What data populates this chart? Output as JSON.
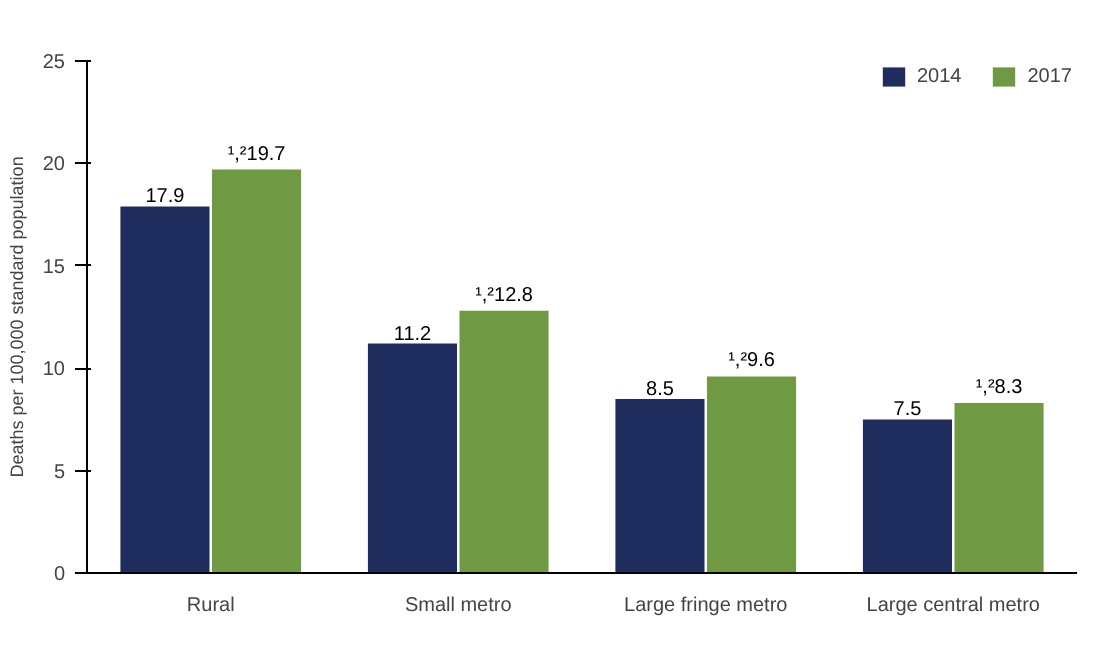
{
  "chart_data": {
    "type": "bar",
    "ylabel": "Deaths per 100,000 standard population",
    "categories": [
      "Rural",
      "Small metro",
      "Large fringe metro",
      "Large central metro"
    ],
    "series": [
      {
        "name": "2014",
        "color": "#1f2d5e",
        "values": [
          17.9,
          11.2,
          8.5,
          7.5
        ],
        "value_labels": [
          "17.9",
          "11.2",
          "8.5",
          "7.5"
        ]
      },
      {
        "name": "2017",
        "color": "#6f9a43",
        "values": [
          19.7,
          12.8,
          9.6,
          8.3
        ],
        "value_labels": [
          "¹,²19.7",
          "¹,²12.8",
          "¹,²9.6",
          "¹,²8.3"
        ]
      }
    ],
    "ylim": [
      0,
      25
    ],
    "yticks": [
      0,
      5,
      10,
      15,
      20,
      25
    ],
    "grid": false,
    "legend": "top right"
  }
}
